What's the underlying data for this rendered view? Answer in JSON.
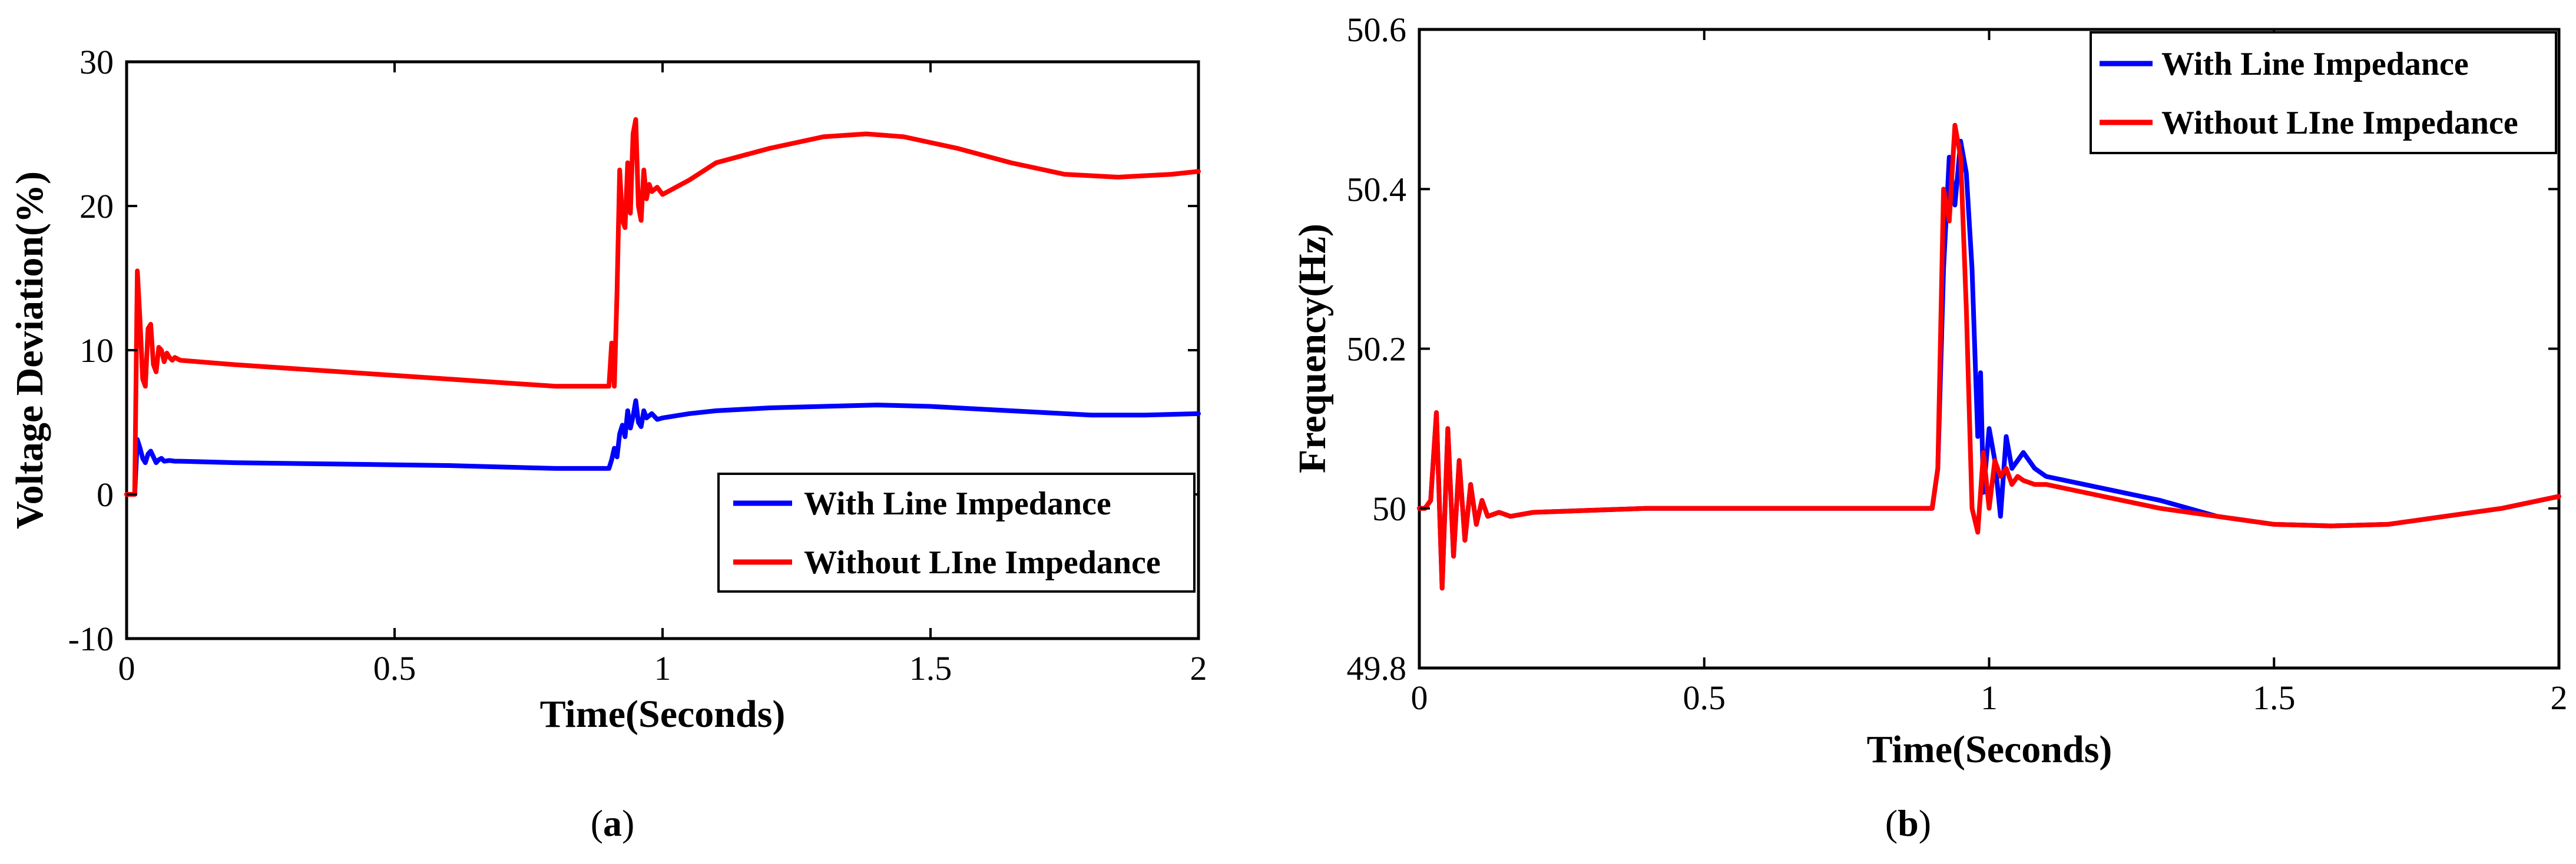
{
  "chart_data": [
    {
      "type": "line",
      "panel": "a",
      "caption_letter": "a",
      "xlabel": "Time(Seconds)",
      "ylabel": "Voltage Deviation(%)",
      "xlim": [
        0,
        2
      ],
      "ylim": [
        -10,
        30
      ],
      "xticks": [
        0,
        0.5,
        1,
        1.5,
        2
      ],
      "xtick_labels": [
        "0",
        "0.5",
        "1",
        "1.5",
        "2"
      ],
      "yticks": [
        -10,
        0,
        10,
        20,
        30
      ],
      "ytick_labels": [
        "-10",
        "0",
        "10",
        "20",
        "30"
      ],
      "legend_position": "bottom-right",
      "series": [
        {
          "name": "With Line Impedance",
          "color": "#0000ff",
          "x": [
            0,
            0.015,
            0.02,
            0.025,
            0.03,
            0.035,
            0.04,
            0.045,
            0.05,
            0.055,
            0.06,
            0.065,
            0.07,
            0.08,
            0.09,
            0.1,
            0.2,
            0.4,
            0.6,
            0.8,
            0.9,
            0.905,
            0.91,
            0.915,
            0.92,
            0.925,
            0.93,
            0.935,
            0.94,
            0.945,
            0.95,
            0.955,
            0.96,
            0.965,
            0.97,
            0.98,
            0.99,
            1.0,
            1.05,
            1.1,
            1.2,
            1.3,
            1.4,
            1.5,
            1.6,
            1.7,
            1.8,
            1.9,
            2.0
          ],
          "y": [
            0,
            0,
            3.8,
            3.2,
            2.5,
            2.2,
            2.8,
            3.0,
            2.6,
            2.2,
            2.4,
            2.5,
            2.3,
            2.35,
            2.3,
            2.3,
            2.2,
            2.1,
            2.0,
            1.8,
            1.8,
            2.4,
            3.2,
            2.6,
            4.2,
            4.8,
            4.0,
            5.8,
            4.6,
            5.4,
            6.5,
            5.0,
            4.7,
            5.8,
            5.3,
            5.6,
            5.2,
            5.3,
            5.6,
            5.8,
            6.0,
            6.1,
            6.2,
            6.1,
            5.9,
            5.7,
            5.5,
            5.5,
            5.6
          ]
        },
        {
          "name": "Without LIne Impedance",
          "color": "#ff0000",
          "x": [
            0,
            0.015,
            0.02,
            0.025,
            0.03,
            0.035,
            0.04,
            0.045,
            0.05,
            0.055,
            0.06,
            0.065,
            0.07,
            0.075,
            0.08,
            0.085,
            0.09,
            0.1,
            0.2,
            0.4,
            0.6,
            0.8,
            0.9,
            0.905,
            0.91,
            0.915,
            0.92,
            0.925,
            0.93,
            0.935,
            0.94,
            0.945,
            0.95,
            0.955,
            0.96,
            0.965,
            0.97,
            0.975,
            0.98,
            0.99,
            1.0,
            1.05,
            1.1,
            1.2,
            1.3,
            1.38,
            1.45,
            1.55,
            1.65,
            1.75,
            1.85,
            1.95,
            2.0
          ],
          "y": [
            0,
            0,
            15.5,
            12.0,
            8.0,
            7.5,
            11.5,
            11.8,
            9.0,
            8.5,
            10.2,
            10.0,
            9.2,
            9.8,
            9.5,
            9.3,
            9.5,
            9.3,
            9.0,
            8.5,
            8.0,
            7.5,
            7.5,
            10.5,
            7.5,
            14.0,
            22.5,
            19.0,
            18.5,
            23.0,
            19.5,
            25.0,
            26.0,
            20.0,
            19.0,
            22.5,
            20.5,
            21.5,
            21.0,
            21.3,
            20.8,
            21.8,
            23.0,
            24.0,
            24.8,
            25.0,
            24.8,
            24.0,
            23.0,
            22.2,
            22.0,
            22.2,
            22.4
          ]
        }
      ]
    },
    {
      "type": "line",
      "panel": "b",
      "caption_letter": "b",
      "xlabel": "Time(Seconds)",
      "ylabel": "Frequency(Hz)",
      "xlim": [
        0,
        2
      ],
      "ylim": [
        49.8,
        50.6
      ],
      "xticks": [
        0,
        0.5,
        1,
        1.5,
        2
      ],
      "xtick_labels": [
        "0",
        "0.5",
        "1",
        "1.5",
        "2"
      ],
      "yticks": [
        49.8,
        50.0,
        50.2,
        50.4,
        50.6
      ],
      "ytick_labels": [
        "49.8",
        "50",
        "50.2",
        "50.4",
        "50.6"
      ],
      "legend_position": "top-right",
      "series": [
        {
          "name": "With Line Impedance",
          "color": "#0000ff",
          "x": [
            0,
            0.01,
            0.02,
            0.03,
            0.04,
            0.05,
            0.06,
            0.07,
            0.08,
            0.09,
            0.1,
            0.11,
            0.12,
            0.14,
            0.16,
            0.2,
            0.4,
            0.6,
            0.8,
            0.9,
            0.91,
            0.92,
            0.93,
            0.94,
            0.95,
            0.96,
            0.97,
            0.98,
            0.985,
            0.99,
            1.0,
            1.01,
            1.02,
            1.03,
            1.04,
            1.05,
            1.06,
            1.08,
            1.1,
            1.2,
            1.3,
            1.4,
            1.5,
            1.6,
            1.7,
            1.8,
            1.9,
            2.0
          ],
          "y": [
            50.0,
            50.0,
            50.01,
            50.12,
            49.9,
            50.1,
            49.94,
            50.06,
            49.96,
            50.03,
            49.98,
            50.01,
            49.99,
            49.995,
            49.99,
            49.995,
            50.0,
            50.0,
            50.0,
            50.0,
            50.05,
            50.3,
            50.44,
            50.38,
            50.46,
            50.42,
            50.3,
            50.09,
            50.17,
            50.02,
            50.1,
            50.06,
            49.99,
            50.09,
            50.05,
            50.06,
            50.07,
            50.05,
            50.04,
            50.025,
            50.01,
            49.99,
            49.98,
            49.978,
            49.98,
            49.99,
            50.0,
            50.015
          ]
        },
        {
          "name": "Without LIne Impedance",
          "color": "#ff0000",
          "x": [
            0,
            0.01,
            0.02,
            0.03,
            0.04,
            0.05,
            0.06,
            0.07,
            0.08,
            0.09,
            0.1,
            0.11,
            0.12,
            0.14,
            0.16,
            0.2,
            0.4,
            0.6,
            0.8,
            0.9,
            0.91,
            0.92,
            0.93,
            0.94,
            0.95,
            0.96,
            0.97,
            0.98,
            0.99,
            1.0,
            1.01,
            1.02,
            1.03,
            1.04,
            1.05,
            1.06,
            1.08,
            1.1,
            1.2,
            1.3,
            1.4,
            1.5,
            1.6,
            1.7,
            1.8,
            1.9,
            2.0
          ],
          "y": [
            50.0,
            50.0,
            50.01,
            50.12,
            49.9,
            50.1,
            49.94,
            50.06,
            49.96,
            50.03,
            49.98,
            50.01,
            49.99,
            49.995,
            49.99,
            49.995,
            50.0,
            50.0,
            50.0,
            50.0,
            50.05,
            50.4,
            50.36,
            50.48,
            50.44,
            50.25,
            50.0,
            49.97,
            50.07,
            50.0,
            50.06,
            50.04,
            50.05,
            50.03,
            50.04,
            50.035,
            50.03,
            50.03,
            50.015,
            50.0,
            49.99,
            49.98,
            49.978,
            49.98,
            49.99,
            50.0,
            50.015
          ]
        }
      ]
    }
  ]
}
